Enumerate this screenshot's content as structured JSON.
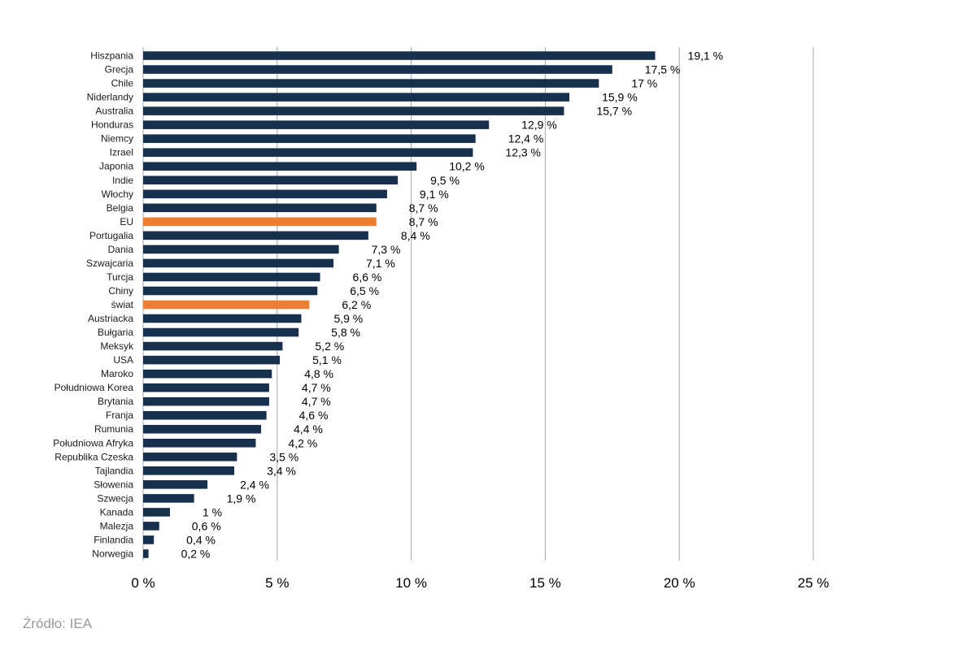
{
  "chart_data": {
    "type": "bar",
    "orientation": "horizontal",
    "categories": [
      "Hiszpania",
      "Grecja",
      "Chile",
      "Niderlandy",
      "Australia",
      "Honduras",
      "Niemcy",
      "Izrael",
      "Japonia",
      "Indie",
      "Włochy",
      "Belgia",
      "EU",
      "Portugalia",
      "Dania",
      "Szwajcaria",
      "Turcja",
      "Chiny",
      "świat",
      "Austriacka",
      "Bułgaria",
      "Meksyk",
      "USA",
      "Maroko",
      "Południowa Korea",
      "Brytania",
      "Franja",
      "Rumunia",
      "Południowa Afryka",
      "Republika Czeska",
      "Tajlandia",
      "Słowenia",
      "Szwecja",
      "Kanada",
      "Malezja",
      "Finlandia",
      "Norwegia"
    ],
    "values": [
      19.1,
      17.5,
      17,
      15.9,
      15.7,
      12.9,
      12.4,
      12.3,
      10.2,
      9.5,
      9.1,
      8.7,
      8.7,
      8.4,
      7.3,
      7.1,
      6.6,
      6.5,
      6.2,
      5.9,
      5.8,
      5.2,
      5.1,
      4.8,
      4.7,
      4.7,
      4.6,
      4.4,
      4.2,
      3.5,
      3.4,
      2.4,
      1.9,
      1,
      0.6,
      0.4,
      0.2
    ],
    "value_labels": [
      "19,1 %",
      "17,5 %",
      "17 %",
      "15,9 %",
      "15,7 %",
      "12,9 %",
      "12,4 %",
      "12,3 %",
      "10,2 %",
      "9,5 %",
      "9,1 %",
      "8,7 %",
      "8,7 %",
      "8,4 %",
      "7,3 %",
      "7,1 %",
      "6,6 %",
      "6,5 %",
      "6,2 %",
      "5,9 %",
      "5,8 %",
      "5,2 %",
      "5,1 %",
      "4,8 %",
      "4,7 %",
      "4,7 %",
      "4,6 %",
      "4,4 %",
      "4,2 %",
      "3,5 %",
      "3,4 %",
      "2,4 %",
      "1,9 %",
      "1 %",
      "0,6 %",
      "0,4 %",
      "0,2 %"
    ],
    "highlighted": [
      "EU",
      "świat"
    ],
    "xlim": [
      0,
      25
    ],
    "xticks": [
      0,
      5,
      10,
      15,
      20,
      25
    ],
    "xtick_labels": [
      "0 %",
      "5 %",
      "10 %",
      "15 %",
      "20 %",
      "25 %"
    ],
    "grid": "vertical",
    "colors": {
      "bar": "#17304d",
      "highlight": "#ec7d31",
      "grid": "#a6a6a6"
    }
  },
  "source": "Źródło: IEA"
}
